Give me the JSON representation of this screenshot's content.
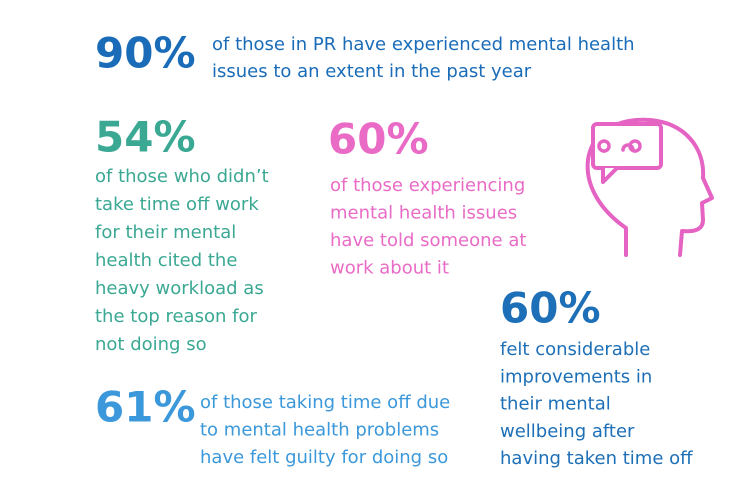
{
  "stats": [
    {
      "value": "90%",
      "lines": [
        "of those in PR have experienced mental health",
        "issues to an extent in the past year"
      ]
    },
    {
      "value": "54%",
      "lines": [
        "of those who didn’t",
        "take time off work",
        "for their mental",
        "health cited the",
        "heavy workload as",
        "the top reason for",
        "not doing so"
      ]
    },
    {
      "value": "60%",
      "lines": [
        "of those experiencing",
        "mental health issues",
        "have told someone at",
        "work about it"
      ]
    },
    {
      "value": "60%",
      "lines": [
        "felt considerable",
        "improvements in",
        "their mental",
        "wellbeing after",
        "having taken time off"
      ]
    },
    {
      "value": "61%",
      "lines": [
        "of those taking time off due",
        "to mental health problems",
        "have felt guilty for doing so"
      ]
    }
  ]
}
